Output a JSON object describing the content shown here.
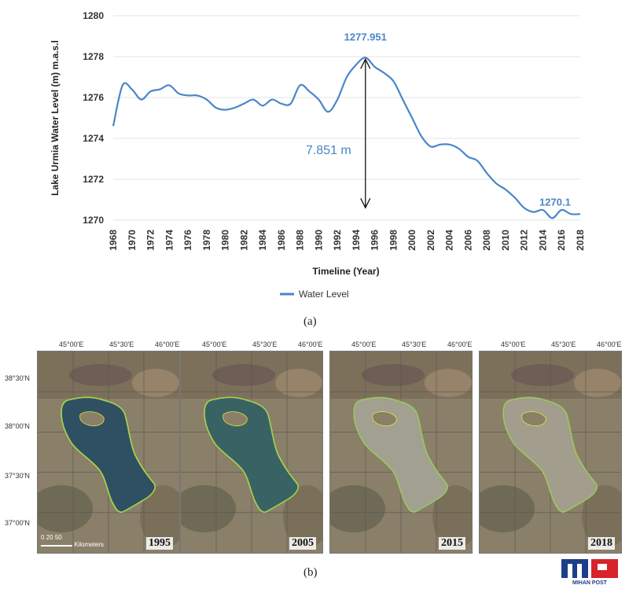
{
  "chart_data": {
    "type": "line",
    "ylabel": "Lake Urmia Water Level (m) m.a.s.l",
    "xlabel": "Timeline (Year)",
    "ylim": [
      1270,
      1280
    ],
    "yticks": [
      1270,
      1272,
      1274,
      1276,
      1278,
      1280
    ],
    "xlim": [
      1968,
      2018
    ],
    "xticks": [
      1968,
      1970,
      1972,
      1974,
      1976,
      1978,
      1980,
      1982,
      1984,
      1986,
      1988,
      1990,
      1992,
      1994,
      1996,
      1998,
      2000,
      2002,
      2004,
      2006,
      2008,
      2010,
      2012,
      2014,
      2016,
      2018
    ],
    "grid": true,
    "legend_position": "bottom-center",
    "series": [
      {
        "name": "Water Level",
        "color": "#4a86c8",
        "x": [
          1968,
          1969,
          1970,
          1971,
          1972,
          1973,
          1974,
          1975,
          1976,
          1977,
          1978,
          1979,
          1980,
          1981,
          1982,
          1983,
          1984,
          1985,
          1986,
          1987,
          1988,
          1989,
          1990,
          1991,
          1992,
          1993,
          1994,
          1995,
          1996,
          1997,
          1998,
          1999,
          2000,
          2001,
          2002,
          2003,
          2004,
          2005,
          2006,
          2007,
          2008,
          2009,
          2010,
          2011,
          2012,
          2013,
          2014,
          2015,
          2016,
          2017,
          2018
        ],
        "y": [
          1274.6,
          1276.6,
          1276.4,
          1275.9,
          1276.3,
          1276.4,
          1276.6,
          1276.2,
          1276.1,
          1276.1,
          1275.9,
          1275.5,
          1275.4,
          1275.5,
          1275.7,
          1275.9,
          1275.6,
          1275.9,
          1275.7,
          1275.7,
          1276.6,
          1276.3,
          1275.9,
          1275.3,
          1275.9,
          1277.0,
          1277.6,
          1277.951,
          1277.5,
          1277.2,
          1276.8,
          1275.9,
          1275.0,
          1274.1,
          1273.6,
          1273.7,
          1273.7,
          1273.5,
          1273.1,
          1272.9,
          1272.3,
          1271.8,
          1271.5,
          1271.1,
          1270.6,
          1270.4,
          1270.5,
          1270.1,
          1270.5,
          1270.3,
          1270.3
        ]
      }
    ],
    "annotations": {
      "peak_label": "1277.951",
      "low_label": "1270.1",
      "diff_label": "7.851 m"
    }
  },
  "captions": {
    "a": "(a)",
    "b": "(b)"
  },
  "maps": {
    "lon_labels": [
      "45°00'E",
      "45°30'E",
      "46°00'E"
    ],
    "lat_labels": [
      "38°30'N",
      "38°00'N",
      "37°30'N",
      "37°00'N"
    ],
    "scale_labels": [
      "0",
      "20",
      "50",
      "Kilometers"
    ],
    "panels": [
      {
        "year": "1995",
        "water": "#2f4f63",
        "water_fraction": 1.0
      },
      {
        "year": "2005",
        "water": "#2c5a5e",
        "water_fraction": 0.85
      },
      {
        "year": "2015",
        "water": "#8a8f80",
        "water_fraction": 0.2
      },
      {
        "year": "2018",
        "water": "#8d8b7d",
        "water_fraction": 0.25
      }
    ]
  },
  "logo_text": "MIHAN POST"
}
